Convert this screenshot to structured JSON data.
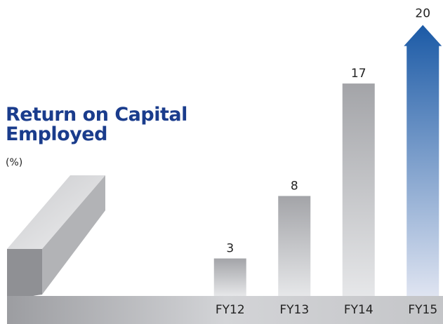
{
  "chart_data": {
    "type": "bar",
    "title": "Return on Capital Employed",
    "subtitle": "(%)",
    "categories": [
      "FY12",
      "FY13",
      "FY14",
      "FY15"
    ],
    "values": [
      3,
      8,
      17,
      20
    ],
    "colors": [
      "#a7a8ac",
      "#a7a8ac",
      "#a7a8ac",
      "#1b5aa6"
    ],
    "ylim": [
      0,
      22
    ]
  }
}
